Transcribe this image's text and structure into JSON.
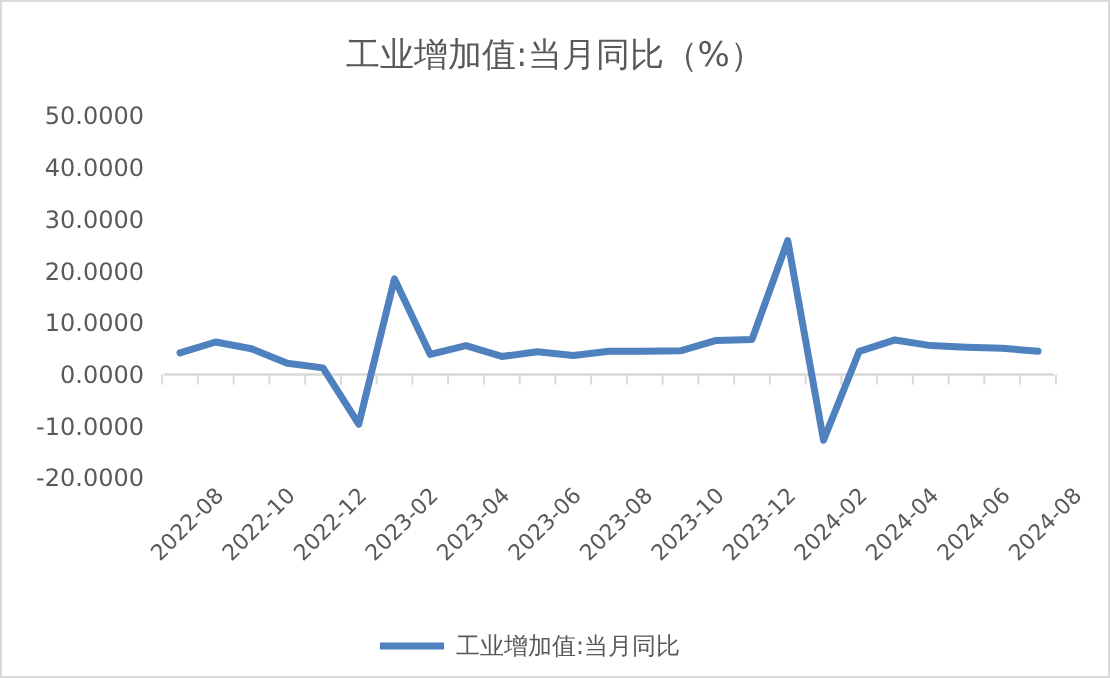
{
  "chart_data": {
    "type": "line",
    "title": "工业增加值:当月同比（%）",
    "categories": [
      "2022-08",
      null,
      "2022-10",
      null,
      "2022-12",
      null,
      "2023-02",
      null,
      "2023-04",
      null,
      "2023-06",
      null,
      "2023-08",
      null,
      "2023-10",
      null,
      "2023-12",
      null,
      "2024-02",
      null,
      "2024-04",
      null,
      "2024-06",
      null,
      "2024-08"
    ],
    "series": [
      {
        "name": "工业增加值:当月同比",
        "color": "#4e81bd",
        "values": [
          4.2,
          6.3,
          5.0,
          2.2,
          1.3,
          -9.6,
          18.5,
          3.9,
          5.6,
          3.5,
          4.4,
          3.7,
          4.5,
          4.5,
          4.6,
          6.6,
          6.8,
          25.9,
          -12.7,
          4.5,
          6.7,
          5.6,
          5.3,
          5.1,
          4.5
        ]
      }
    ],
    "ylim": [
      -20,
      50
    ],
    "yticks": [
      {
        "value": -20,
        "label": "-20.0000"
      },
      {
        "value": -10,
        "label": "-10.0000"
      },
      {
        "value": 0,
        "label": "0.0000"
      },
      {
        "value": 10,
        "label": "10.0000"
      },
      {
        "value": 20,
        "label": "20.0000"
      },
      {
        "value": 30,
        "label": "30.0000"
      },
      {
        "value": 40,
        "label": "40.0000"
      },
      {
        "value": 50,
        "label": "50.0000"
      }
    ],
    "legend": "bottom",
    "marker": "none",
    "line_style": "solid"
  }
}
